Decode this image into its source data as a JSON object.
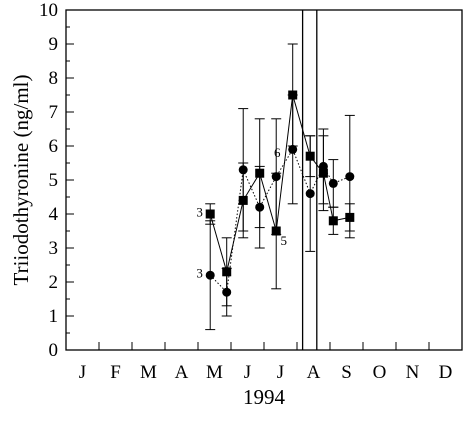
{
  "chart_data": {
    "type": "line",
    "xlabel": "1994",
    "ylabel": "Triiodothyronine (ng/ml)",
    "ylim": [
      0,
      10
    ],
    "yticks": [
      0,
      1,
      2,
      3,
      4,
      5,
      6,
      7,
      8,
      9,
      10
    ],
    "xlim": [
      0.5,
      12.5
    ],
    "month_labels": [
      "J",
      "F",
      "M",
      "A",
      "M",
      "J",
      "J",
      "A",
      "S",
      "O",
      "N",
      "D"
    ],
    "grid": false,
    "vertical_lines": [
      7.67,
      8.1
    ],
    "series": [
      {
        "marker": "square",
        "line": "solid",
        "x": [
          4.87,
          5.37,
          5.87,
          6.37,
          6.87,
          7.37,
          7.9,
          8.3,
          8.6,
          9.1
        ],
        "y": [
          4.0,
          2.3,
          4.4,
          5.2,
          3.5,
          7.5,
          5.7,
          5.2,
          3.8,
          3.9
        ],
        "err": [
          0.3,
          1.0,
          1.1,
          1.6,
          1.7,
          1.5,
          0.6,
          1.1,
          0.4,
          0.4
        ]
      },
      {
        "marker": "circle",
        "line": "dotted",
        "x": [
          4.87,
          5.37,
          5.87,
          6.37,
          6.87,
          7.37,
          7.9,
          8.3,
          8.6,
          9.1
        ],
        "y": [
          2.2,
          1.7,
          5.3,
          4.2,
          5.1,
          5.9,
          4.6,
          5.4,
          4.9,
          5.1
        ],
        "err": [
          1.6,
          0.7,
          1.8,
          1.2,
          1.7,
          1.6,
          1.7,
          1.1,
          0.7,
          1.8
        ]
      }
    ],
    "annotations": [
      {
        "text": "3",
        "x": 4.55,
        "y": 4.05
      },
      {
        "text": "3",
        "x": 4.55,
        "y": 2.25
      },
      {
        "text": "6",
        "x": 6.9,
        "y": 5.8
      },
      {
        "text": "5",
        "x": 7.1,
        "y": 3.2
      }
    ]
  }
}
